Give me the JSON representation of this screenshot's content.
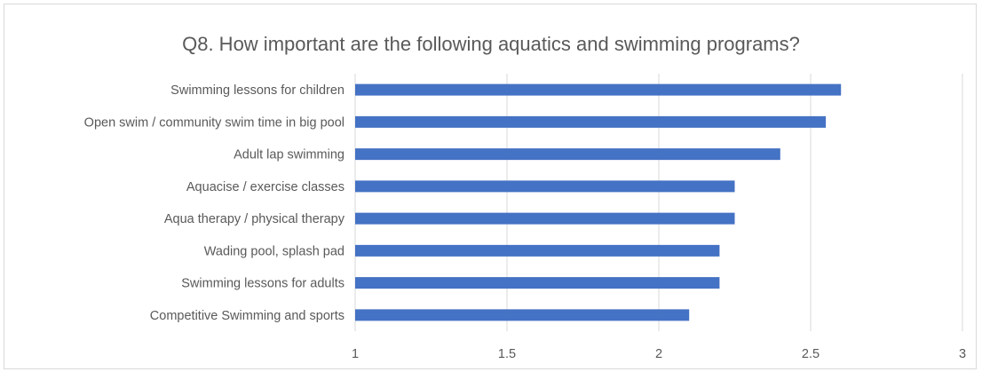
{
  "chart_data": {
    "type": "bar",
    "orientation": "horizontal",
    "title": "Q8. How important are the following aquatics and swimming programs?",
    "categories": [
      "Swimming lessons for children",
      "Open swim / community swim time in big pool",
      "Adult lap swimming",
      "Aquacise / exercise classes",
      "Aqua therapy / physical therapy",
      "Wading pool, splash pad",
      "Swimming lessons for adults",
      "Competitive Swimming and sports"
    ],
    "values": [
      2.6,
      2.55,
      2.4,
      2.25,
      2.25,
      2.2,
      2.2,
      2.1
    ],
    "xlim": [
      1,
      3
    ],
    "xticks": [
      "1",
      "1.5",
      "2",
      "2.5",
      "3"
    ],
    "grid": true,
    "legend": "none",
    "colors": {
      "bar": "#4472c4",
      "grid": "#d9d9d9",
      "text": "#595959"
    }
  }
}
